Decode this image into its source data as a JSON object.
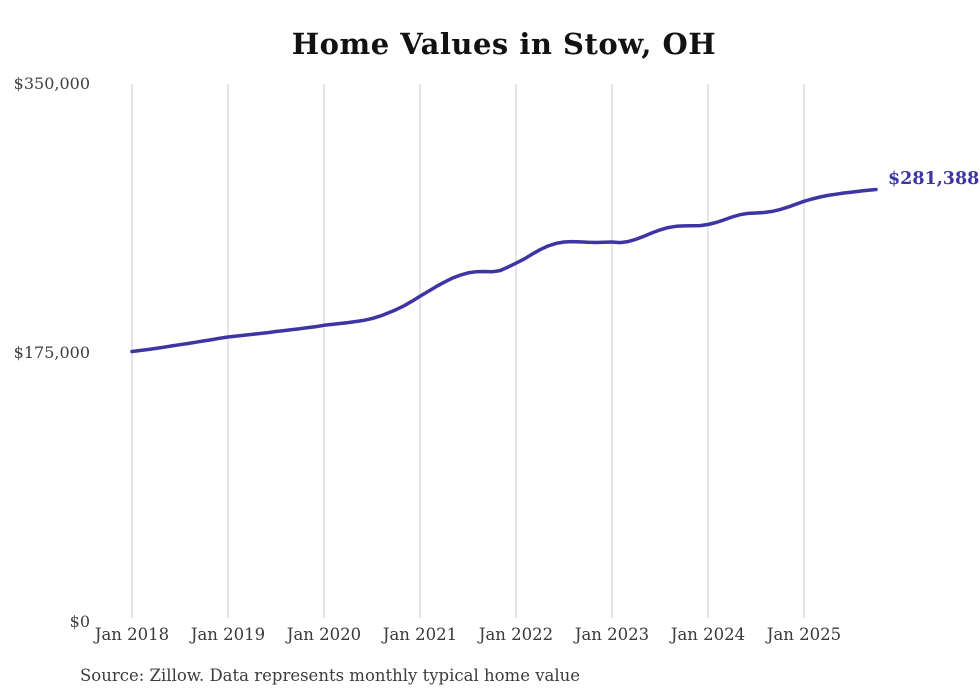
{
  "chart": {
    "title": "Home Values in Stow, OH",
    "source_note": "Source: Zillow. Data represents monthly typical home value",
    "end_label": "$281,388",
    "line_color": "#3c35a3",
    "grid_color": "#cccccc",
    "title_color": "#121212",
    "axis_text_color": "#3a3a3a"
  },
  "chart_data": {
    "type": "line",
    "title": "Home Values in Stow, OH",
    "series_name": "Typical home value (monthly)",
    "x": [
      "2018-01",
      "2018-02",
      "2018-03",
      "2018-04",
      "2018-05",
      "2018-06",
      "2018-07",
      "2018-08",
      "2018-09",
      "2018-10",
      "2018-11",
      "2018-12",
      "2019-01",
      "2019-02",
      "2019-03",
      "2019-04",
      "2019-05",
      "2019-06",
      "2019-07",
      "2019-08",
      "2019-09",
      "2019-10",
      "2019-11",
      "2019-12",
      "2020-01",
      "2020-02",
      "2020-03",
      "2020-04",
      "2020-05",
      "2020-06",
      "2020-07",
      "2020-08",
      "2020-09",
      "2020-10",
      "2020-11",
      "2020-12",
      "2021-01",
      "2021-02",
      "2021-03",
      "2021-04",
      "2021-05",
      "2021-06",
      "2021-07",
      "2021-08",
      "2021-09",
      "2021-10",
      "2021-11",
      "2021-12",
      "2022-01",
      "2022-02",
      "2022-03",
      "2022-04",
      "2022-05",
      "2022-06",
      "2022-07",
      "2022-08",
      "2022-09",
      "2022-10",
      "2022-11",
      "2022-12",
      "2023-01",
      "2023-02",
      "2023-03",
      "2023-04",
      "2023-05",
      "2023-06",
      "2023-07",
      "2023-08",
      "2023-09",
      "2023-10",
      "2023-11",
      "2023-12",
      "2024-01",
      "2024-02",
      "2024-03",
      "2024-04",
      "2024-05",
      "2024-06",
      "2024-07",
      "2024-08",
      "2024-09",
      "2024-10",
      "2024-11",
      "2024-12",
      "2025-01",
      "2025-02",
      "2025-03",
      "2025-04",
      "2025-05",
      "2025-06",
      "2025-07",
      "2025-08",
      "2025-09",
      "2025-10"
    ],
    "values": [
      176000,
      176600,
      177300,
      178000,
      178800,
      179600,
      180400,
      181200,
      182000,
      182900,
      183700,
      184600,
      185400,
      186000,
      186500,
      187100,
      187700,
      188300,
      189000,
      189600,
      190200,
      190800,
      191500,
      192200,
      193000,
      193600,
      194200,
      194800,
      195500,
      196300,
      197400,
      199000,
      201000,
      203200,
      205700,
      208700,
      211900,
      215000,
      218100,
      221000,
      223600,
      225600,
      227100,
      227900,
      228000,
      227800,
      228600,
      230900,
      233400,
      236100,
      239200,
      242200,
      244600,
      246300,
      247200,
      247500,
      247300,
      247000,
      246900,
      247000,
      247200,
      246800,
      247500,
      249000,
      251000,
      253100,
      255100,
      256600,
      257400,
      257700,
      257800,
      257900,
      258600,
      259900,
      261600,
      263500,
      265000,
      265800,
      266100,
      266400,
      267100,
      268300,
      269900,
      271800,
      273700,
      275200,
      276500,
      277500,
      278300,
      279100,
      279700,
      280300,
      280900,
      281388
    ],
    "x_tick_labels": [
      "Jan 2018",
      "Jan 2019",
      "Jan 2020",
      "Jan 2021",
      "Jan 2022",
      "Jan 2023",
      "Jan 2024",
      "Jan 2025"
    ],
    "y_ticks": [
      {
        "label": "$350,000",
        "value": 350000
      },
      {
        "label": "$175,000",
        "value": 175000
      },
      {
        "label": "$0",
        "value": 0
      }
    ],
    "ylim": [
      0,
      350000
    ],
    "grid": "vertical-only",
    "legend": "none",
    "annotation": {
      "label": "$281,388",
      "value": 281388,
      "position": "line-end"
    }
  }
}
